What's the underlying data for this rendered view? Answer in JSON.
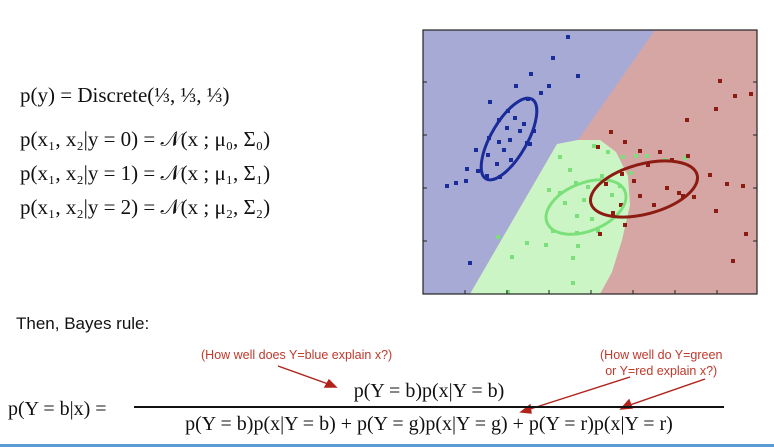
{
  "equations": {
    "prior": "p(y) = Discrete(⅓, ⅓, ⅓)",
    "cond0": "p(x₁, x₂|y = 0) = 𝒩(x ; μ₀, Σ₀)",
    "cond1": "p(x₁, x₂|y = 1) = 𝒩(x ; μ₁, Σ₁)",
    "cond2": "p(x₁, x₂|y = 2) = 𝒩(x ; μ₂, Σ₂)"
  },
  "then_text": "Then, Bayes rule:",
  "notes": {
    "blue": "(How well does Y=blue explain x?)",
    "green_red_1": "(How well do Y=green",
    "green_red_2": "or Y=red explain x?)"
  },
  "bayes": {
    "lhs": "p(Y = b|x) =",
    "numerator": "p(Y = b)p(x|Y = b)",
    "denominator": "p(Y = b)p(x|Y = b) + p(Y = g)p(x|Y = g) + p(Y = r)p(x|Y = r)"
  },
  "colors": {
    "region_blue": "#a8aad6",
    "region_red": "#d6a6a4",
    "region_green": "#ccf5c6",
    "blue": "#1a2c9a",
    "red": "#8c1c12",
    "green": "#7ce07a",
    "note": "#c0392b"
  }
}
